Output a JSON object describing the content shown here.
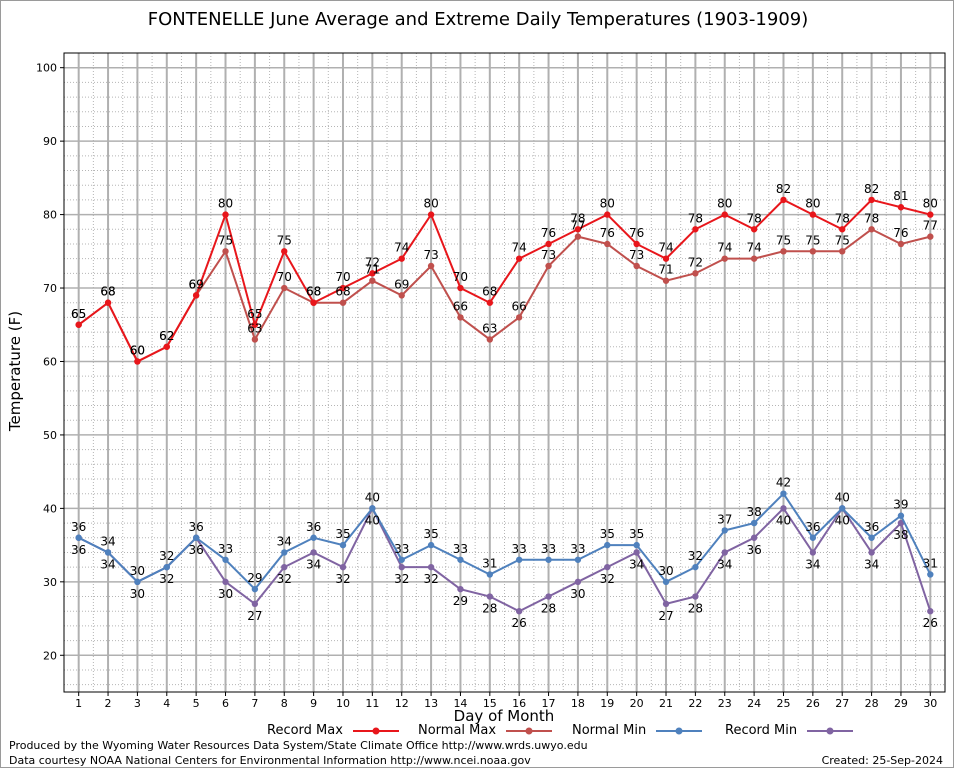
{
  "chart_data": {
    "type": "line",
    "title": "FONTENELLE June Average and Extreme Daily Temperatures (1903-1909)",
    "xlabel": "Day of Month",
    "ylabel": "Temperature (F)",
    "ylim": [
      15,
      102
    ],
    "yticks": [
      20,
      30,
      40,
      50,
      60,
      70,
      80,
      90,
      100
    ],
    "x": [
      1,
      2,
      3,
      4,
      5,
      6,
      7,
      8,
      9,
      10,
      11,
      12,
      13,
      14,
      15,
      16,
      17,
      18,
      19,
      20,
      21,
      22,
      23,
      24,
      25,
      26,
      27,
      28,
      29,
      30
    ],
    "grid": true,
    "legend_position": "bottom",
    "series": [
      {
        "name": "Record Max",
        "color": "#e8161b",
        "values": [
          65,
          68,
          60,
          62,
          69,
          80,
          65,
          75,
          68,
          70,
          72,
          74,
          80,
          70,
          68,
          74,
          76,
          78,
          80,
          76,
          74,
          78,
          80,
          78,
          82,
          80,
          78,
          82,
          81,
          80
        ]
      },
      {
        "name": "Normal Max",
        "color": "#c0504d",
        "values": [
          65,
          68,
          60,
          62,
          69,
          75,
          63,
          70,
          68,
          68,
          71,
          69,
          73,
          66,
          63,
          66,
          73,
          77,
          76,
          73,
          71,
          72,
          74,
          74,
          75,
          75,
          75,
          78,
          76,
          77
        ]
      },
      {
        "name": "Normal Min",
        "color": "#4f81bd",
        "values": [
          36,
          34,
          30,
          32,
          36,
          33,
          29,
          34,
          36,
          35,
          40,
          33,
          35,
          33,
          31,
          33,
          33,
          33,
          35,
          35,
          30,
          32,
          37,
          38,
          42,
          36,
          40,
          36,
          39,
          31
        ]
      },
      {
        "name": "Record Min",
        "color": "#8064a2",
        "values": [
          36,
          34,
          30,
          32,
          36,
          30,
          27,
          32,
          34,
          32,
          40,
          32,
          32,
          29,
          28,
          26,
          28,
          30,
          32,
          34,
          27,
          28,
          34,
          36,
          40,
          34,
          40,
          34,
          38,
          26
        ]
      }
    ]
  },
  "footer": {
    "produced_by": "Produced by the Wyoming Water Resources Data System/State Climate Office http://www.wrds.uwyo.edu",
    "courtesy": "Data courtesy NOAA National Centers for Environmental Information http://www.ncei.noaa.gov",
    "created": "Created:  25-Sep-2024"
  }
}
